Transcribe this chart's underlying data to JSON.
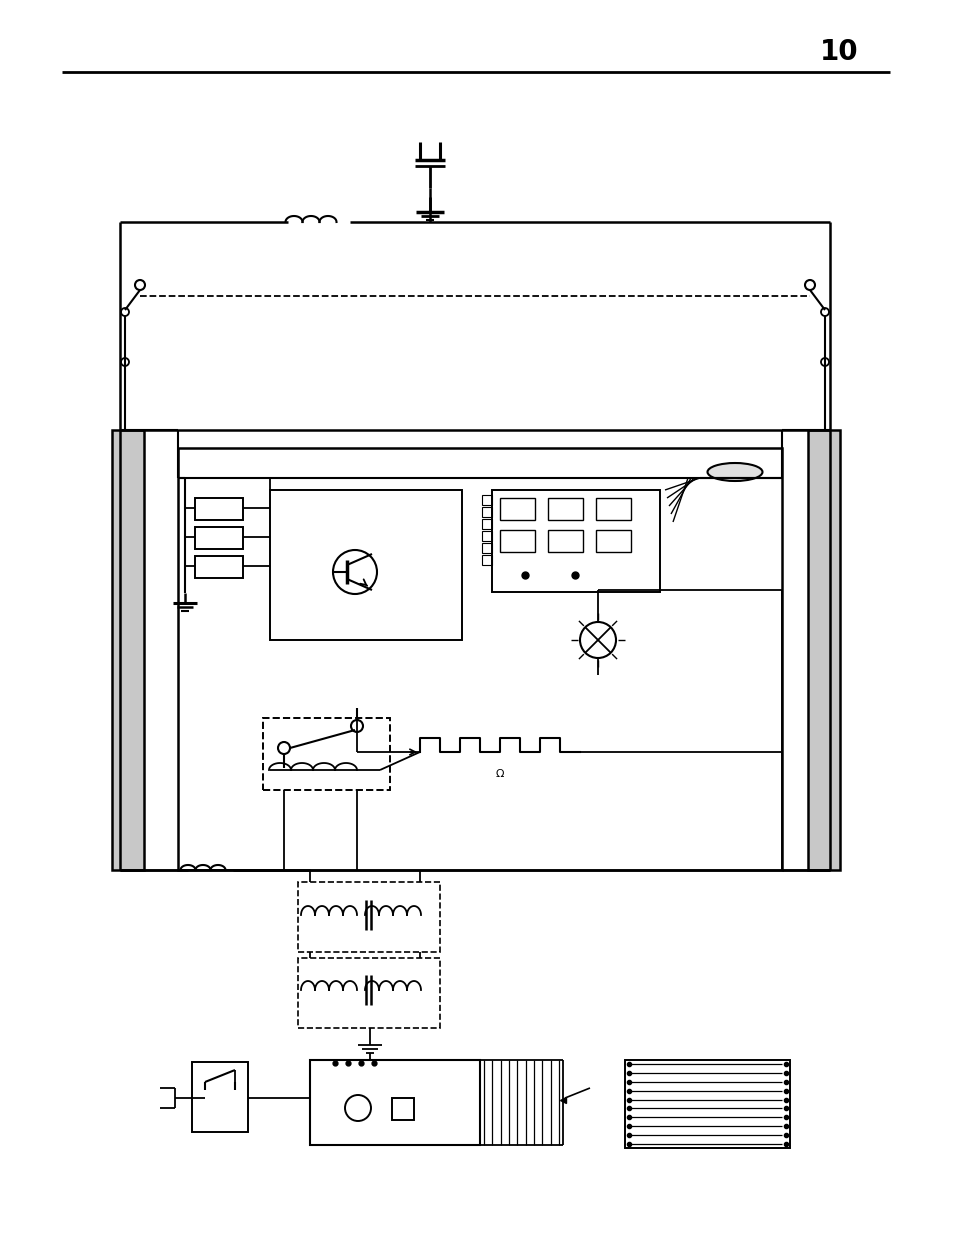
{
  "page_number": "10",
  "bg_color": "#ffffff",
  "line_color": "#000000",
  "fig_width": 9.54,
  "fig_height": 12.35,
  "dpi": 100
}
